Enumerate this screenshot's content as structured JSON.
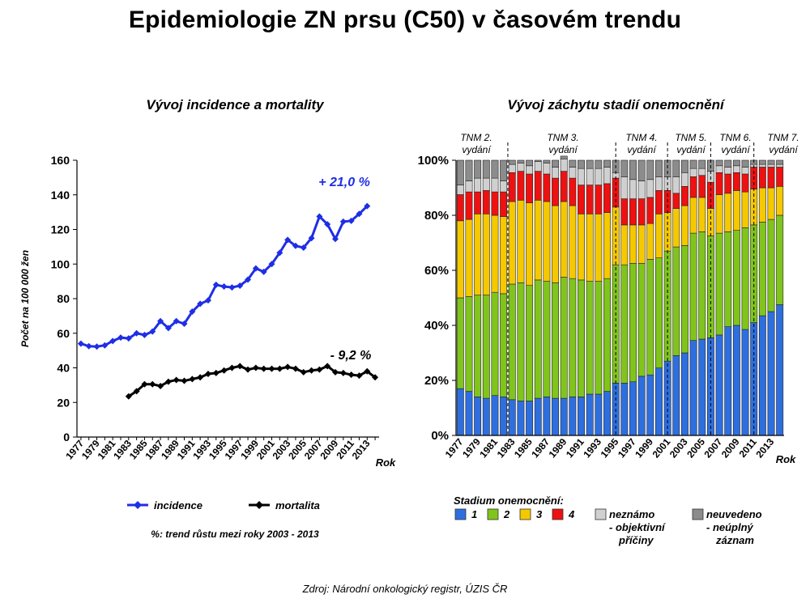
{
  "title": "Epidemiologie ZN prsu (C50) v časovém trendu",
  "source": "Zdroj: Národní onkologický registr, ÚZIS ČR",
  "colors": {
    "incidence": "#1f2ee6",
    "mortalita": "#000000",
    "stadium_1": "#2e6fe0",
    "stadium_2": "#80c41c",
    "stadium_3": "#f5c800",
    "stadium_4": "#ee1111",
    "neznamo": "#d0d0d0",
    "neuvedeno": "#8c8c8c"
  },
  "chart_data": [
    {
      "type": "line",
      "title": "Vývoj incidence a mortality",
      "ylabel": "Počet na 100 000 žen",
      "xlabel": "Rok",
      "ylim": [
        0,
        160
      ],
      "yticks": [
        "0",
        "20",
        "40",
        "60",
        "80",
        "100",
        "120",
        "140",
        "160"
      ],
      "xticks": [
        "1977",
        "1979",
        "1981",
        "1983",
        "1985",
        "1987",
        "1989",
        "1991",
        "1993",
        "1995",
        "1997",
        "1999",
        "2001",
        "2003",
        "2005",
        "2007",
        "2009",
        "2011",
        "2013"
      ],
      "x": [
        1977,
        1978,
        1979,
        1980,
        1981,
        1982,
        1983,
        1984,
        1985,
        1986,
        1987,
        1988,
        1989,
        1990,
        1991,
        1992,
        1993,
        1994,
        1995,
        1996,
        1997,
        1998,
        1999,
        2000,
        2001,
        2002,
        2003,
        2004,
        2005,
        2006,
        2007,
        2008,
        2009,
        2010,
        2011,
        2012,
        2013,
        2014
      ],
      "series": [
        {
          "name": "incidence",
          "values": [
            54,
            52.5,
            52.3,
            53,
            55.5,
            57.5,
            57,
            60,
            59,
            61,
            67,
            63,
            67,
            65.5,
            72.5,
            77,
            79,
            88,
            87,
            86.5,
            87.5,
            91,
            97.5,
            95.5,
            100,
            106.5,
            114,
            110.5,
            109.5,
            115,
            127.5,
            123,
            114.5,
            124.5,
            125,
            129,
            133.5,
            null
          ]
        },
        {
          "name": "mortalita",
          "values": [
            null,
            null,
            null,
            null,
            null,
            null,
            23.5,
            26.5,
            30.5,
            30.5,
            29.5,
            32,
            33,
            32.5,
            33.5,
            34.5,
            36.5,
            37,
            38.5,
            40,
            41,
            39,
            40,
            39.5,
            39.5,
            39.5,
            40.5,
            39.5,
            37.5,
            38.5,
            39,
            41,
            37.5,
            37,
            36,
            35.5,
            38,
            34.5
          ]
        }
      ],
      "annotations": [
        "+ 21,0 %",
        "- 9,2 %"
      ],
      "note": "%: trend růstu mezi roky 2003 - 2013"
    },
    {
      "type": "bar",
      "stacked": true,
      "title": "Vývoj záchytu stadií onemocnění",
      "xlabel": "Rok",
      "ylim": [
        0,
        100
      ],
      "yticks": [
        "0%",
        "20%",
        "40%",
        "60%",
        "80%",
        "100%"
      ],
      "xticks": [
        "1977",
        "1979",
        "1981",
        "1983",
        "1985",
        "1987",
        "1989",
        "1991",
        "1993",
        "1995",
        "1997",
        "1999",
        "2001",
        "2003",
        "2005",
        "2007",
        "2009",
        "2011",
        "2013"
      ],
      "categories": [
        1977,
        1978,
        1979,
        1980,
        1981,
        1982,
        1983,
        1984,
        1985,
        1986,
        1987,
        1988,
        1989,
        1990,
        1991,
        1992,
        1993,
        1994,
        1995,
        1996,
        1997,
        1998,
        1999,
        2000,
        2001,
        2002,
        2003,
        2004,
        2005,
        2006,
        2007,
        2008,
        2009,
        2010,
        2011,
        2012,
        2013,
        2014
      ],
      "series": [
        {
          "name": "1",
          "values": [
            17,
            16,
            14,
            13.5,
            14.5,
            14,
            13,
            12.5,
            12.5,
            13.5,
            14,
            13.5,
            13.5,
            14,
            14,
            15,
            15,
            16,
            19,
            19,
            19.5,
            21.5,
            22,
            24.5,
            27,
            29,
            30,
            34.5,
            35,
            35.5,
            36.5,
            39.5,
            40,
            38.5,
            41,
            43.5,
            45,
            47.5
          ]
        },
        {
          "name": "2",
          "values": [
            33,
            34.5,
            37,
            37.5,
            37.5,
            37.5,
            42,
            43,
            42,
            43,
            42,
            42,
            44,
            43,
            42.5,
            41,
            41,
            41,
            43,
            43,
            43,
            41,
            42,
            40,
            40,
            39.5,
            39,
            39,
            39,
            37,
            37,
            34.5,
            34.5,
            37,
            35.5,
            34,
            33.5,
            32.5
          ]
        },
        {
          "name": "3",
          "values": [
            28,
            28,
            29.5,
            29.5,
            28,
            28,
            30,
            30,
            30,
            29,
            29,
            28,
            27.5,
            26.5,
            24,
            24.5,
            24.5,
            24,
            21,
            14.5,
            14,
            14,
            13,
            16,
            14,
            14,
            14.5,
            13,
            12.5,
            10,
            14,
            14,
            14.5,
            13,
            13,
            12.5,
            11.5,
            10.5
          ]
        },
        {
          "name": "4",
          "values": [
            9.5,
            10,
            8,
            8.5,
            8.5,
            9,
            10.5,
            10.5,
            10.5,
            10.5,
            10,
            10,
            11,
            10,
            10.5,
            10.5,
            10.5,
            10.5,
            10.5,
            9.5,
            9.5,
            9.5,
            9.5,
            8.5,
            8,
            5.5,
            7,
            7.5,
            8,
            9.5,
            8,
            7,
            6.5,
            6.5,
            8,
            7.5,
            7.5,
            7
          ]
        },
        {
          "name": "neznámo - objektivní příčiny",
          "values": [
            3.5,
            4,
            5,
            4.5,
            5,
            4,
            3,
            3,
            3,
            3.5,
            4,
            4,
            4.5,
            4,
            6,
            6,
            6,
            6,
            2,
            8,
            7,
            6.5,
            6.5,
            5,
            5,
            6,
            5,
            3,
            2.5,
            4,
            2.5,
            2.5,
            2.5,
            2.5,
            1,
            1,
            1,
            1
          ]
        },
        {
          "name": "neuvedeno - neúplný záznam",
          "values": [
            9,
            7.5,
            6.5,
            6.5,
            6.5,
            7.5,
            1.5,
            1,
            2,
            0.5,
            1,
            2.5,
            1,
            2.5,
            3,
            3,
            3,
            2.5,
            4.5,
            6,
            7,
            7.5,
            7,
            6,
            6,
            6,
            4.5,
            3,
            3,
            4,
            2,
            2.5,
            2,
            2.5,
            1.5,
            1.5,
            1.5,
            1.5
          ]
        }
      ],
      "legend_title": "Stadium  onemocnění:",
      "tnm_labels": [
        {
          "line1": "TNM 2.",
          "line2": "vydání",
          "start_year": 1977
        },
        {
          "line1": "TNM 3.",
          "line2": "vydání",
          "start_year": 1983
        },
        {
          "line1": "TNM 4.",
          "line2": "vydání",
          "start_year": 1995.5
        },
        {
          "line1": "TNM 5.",
          "line2": "vydání",
          "start_year": 2001.5
        },
        {
          "line1": "TNM 6.",
          "line2": "vydání",
          "start_year": 2006.5
        },
        {
          "line1": "TNM 7.",
          "line2": "vydání",
          "start_year": 2011.5
        }
      ]
    }
  ],
  "legend_left": {
    "incidence_label": "incidence",
    "mortalita_label": "mortalita"
  },
  "legend_right": {
    "s1": "1",
    "s2": "2",
    "s3": "3",
    "s4": "4",
    "neznamo_line1": "neznámo",
    "neznamo_line2": "- objektivní",
    "neznamo_line3": "příčiny",
    "neuvedeno_line1": "neuvedeno",
    "neuvedeno_line2": "- neúplný",
    "neuvedeno_line3": "záznam"
  }
}
